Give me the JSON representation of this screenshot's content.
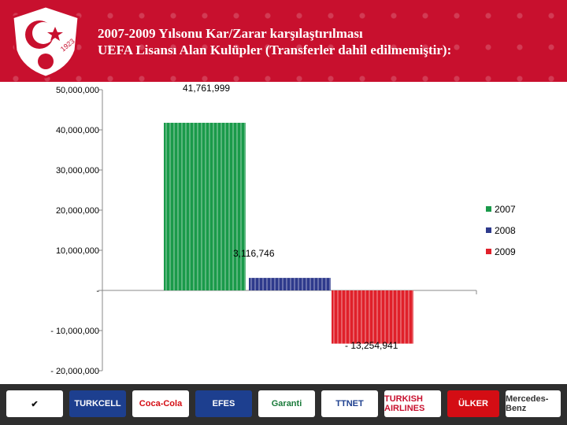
{
  "header": {
    "title_line1": "2007-2009 Yılsonu Kar/Zarar  karşılaştırılması",
    "title_line2": "UEFA Lisansı Alan Kulüpler (Transferler dahil edilmemiştir):",
    "logo_text": "1923"
  },
  "chart_data": {
    "type": "bar",
    "title": "",
    "xlabel": "",
    "ylabel": "",
    "ylim": [
      -20000000,
      50000000
    ],
    "y_ticks": [
      50000000,
      40000000,
      30000000,
      20000000,
      10000000,
      0,
      -10000000,
      -20000000
    ],
    "y_tick_labels": [
      "50,000,000",
      "40,000,000",
      "30,000,000",
      "20,000,000",
      "10,000,000",
      "-",
      "- 10,000,000",
      "- 20,000,000"
    ],
    "series": [
      {
        "name": "2007",
        "value": 41761999,
        "label": "41,761,999",
        "color": "#1a9a4a"
      },
      {
        "name": "2008",
        "value": 3116746,
        "label": "3,116,746",
        "color": "#2e3a8c"
      },
      {
        "name": "2009",
        "value": -13254941,
        "label": "- 13,254,941",
        "color": "#e0202a"
      }
    ],
    "legend_position": "right",
    "grid": false
  },
  "sponsors": [
    {
      "name": "nike-logo",
      "text": "✔",
      "color": "#111111",
      "bg": "#ffffff"
    },
    {
      "name": "turkcell-logo",
      "text": "TURKCELL",
      "color": "#ffffff",
      "bg": "#1d3f8f"
    },
    {
      "name": "coca-cola-logo",
      "text": "Coca-Cola",
      "color": "#d40d14",
      "bg": "#ffffff"
    },
    {
      "name": "efes-logo",
      "text": "EFES",
      "color": "#ffffff",
      "bg": "#1d3f8f"
    },
    {
      "name": "garanti-logo",
      "text": "Garanti",
      "color": "#1a7a3a",
      "bg": "#ffffff"
    },
    {
      "name": "ttnet-logo",
      "text": "TTNET",
      "color": "#1d3f8f",
      "bg": "#ffffff"
    },
    {
      "name": "turkish-airlines-logo",
      "text": "TURKISH AIRLINES",
      "color": "#c8102e",
      "bg": "#ffffff"
    },
    {
      "name": "ulker-logo",
      "text": "ÜLKER",
      "color": "#ffffff",
      "bg": "#d40d14"
    },
    {
      "name": "mercedes-benz-logo",
      "text": "Mercedes-Benz",
      "color": "#333333",
      "bg": "#ffffff"
    }
  ]
}
